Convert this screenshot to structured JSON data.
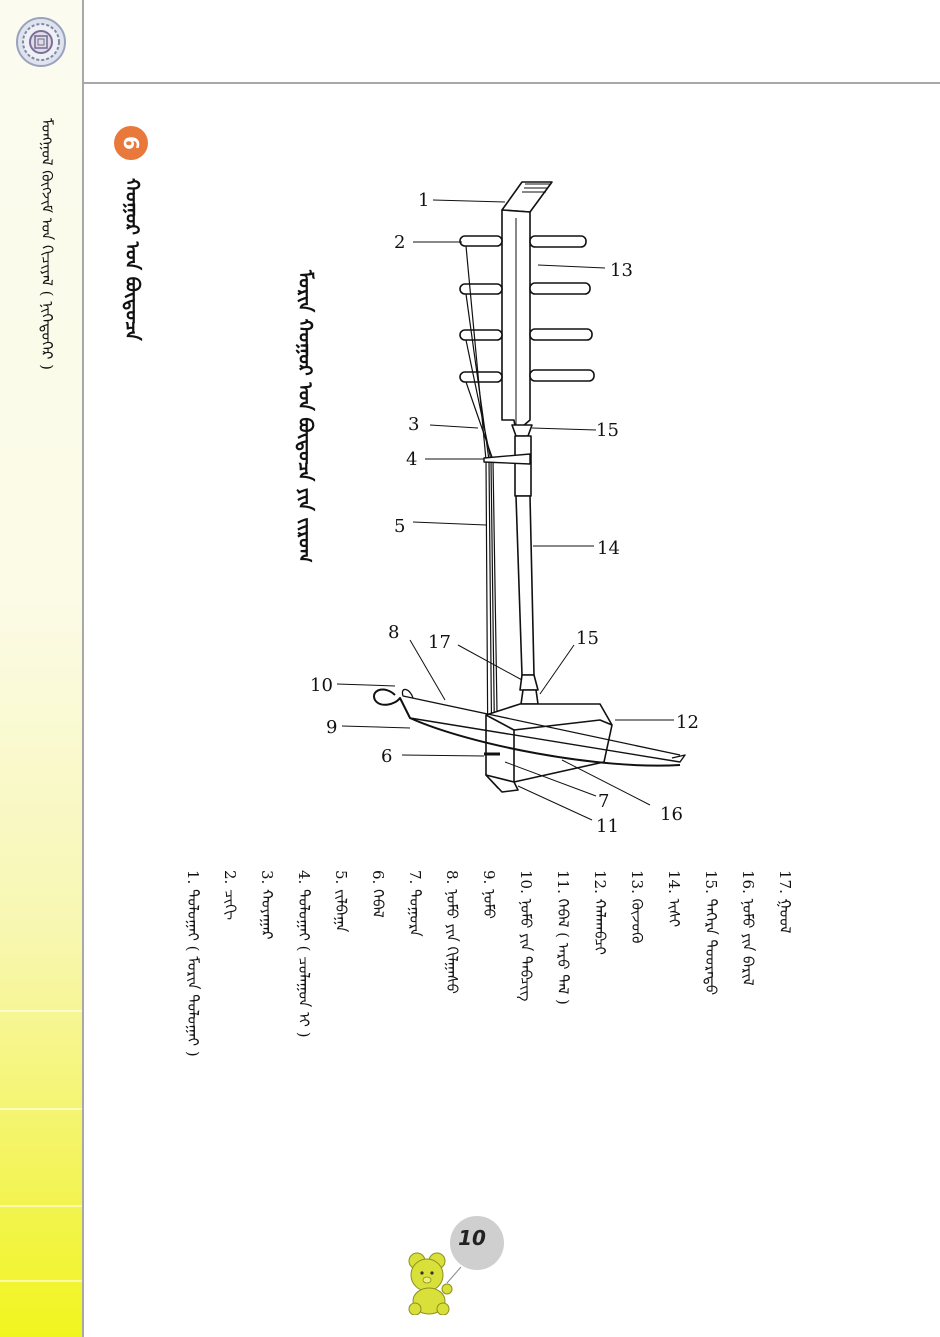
{
  "running_head": "ᠮᠣᠩᠭᠣᠯ ᠬᠥᠭᠵᠢᠮ ᠤᠨ ᠬᠢᠴᠢᠶᠡᠯ ( ᠨᠢᠭᠡᠳᠦᠭᠡᠷ )",
  "section": {
    "number": "6",
    "title": "ᠬᠤᠭᠤᠷ ᠤᠨ ᠪᠦᠲᠦᠴᠡ"
  },
  "figure_caption": "ᠮᠣᠷᠢᠨ ᠬᠤᠭᠤᠷ ᠤᠨ ᠪᠦᠲᠦᠴᠡ ᠶᠢᠨ ᠵᠢᠷᠤᠭ",
  "callouts": [
    "1",
    "2",
    "3",
    "4",
    "5",
    "6",
    "7",
    "8",
    "9",
    "10",
    "11",
    "12",
    "13",
    "14",
    "15",
    "15",
    "16",
    "17"
  ],
  "legend": [
    {
      "num": "1.",
      "text": "ᠲᠣᠯᠣᠭᠠᠢ ( ᠮᠣᠷᠢᠨ ᠲᠣᠯᠣᠭᠠᠢ )"
    },
    {
      "num": "2.",
      "text": "ᠴᠢᠬᠢ"
    },
    {
      "num": "3.",
      "text": "ᠬᠣᠶᠠᠭᠠᠷ"
    },
    {
      "num": "4.",
      "text": "ᠲᠣᠯᠣᠭᠠᠢ ( ᠴᠤᠯᠠᠭᠤᠨ ᠢ )"
    },
    {
      "num": "5.",
      "text": "ᠵᠢᠯᠪᠠᠭᠠ"
    },
    {
      "num": "6.",
      "text": "ᠬᠡᠪᠡᠯ"
    },
    {
      "num": "7.",
      "text": "ᠳᠤᠭᠤᠷᠠ"
    },
    {
      "num": "8.",
      "text": "ᠨᠤᠮᠤ ᠶᠢᠨ ᠬᠢᠯᠭᠠᠰᠤ"
    },
    {
      "num": "9.",
      "text": "ᠨᠤᠮᠤ"
    },
    {
      "num": "10.",
      "text": "ᠨᠤᠮᠤ ᠶᠢᠨ ᠲᠡᠪᠴᠢᠭ"
    },
    {
      "num": "11.",
      "text": "ᠬᠡᠪᠡᠯ ( ᠠᠷᠤ ᠲᠠᠯ )"
    },
    {
      "num": "12.",
      "text": "ᠬᠠᠯᠬᠠᠪᠴᠢ"
    },
    {
      "num": "13.",
      "text": "ᠬᠦᠵᠦᠭᠦ"
    },
    {
      "num": "14.",
      "text": "ᠢᠰᠢ"
    },
    {
      "num": "15.",
      "text": "ᠳᠡᠭᠡᠷᠡ ᠳᠣᠣᠷᠠᠳᠤ"
    },
    {
      "num": "16.",
      "text": "ᠨᠤᠮᠤ ᠶᠢᠨ ᠪᠠᠷᠢᠯ"
    },
    {
      "num": "17.",
      "text": "ᠭᠣᠣᠯ"
    }
  ],
  "page_number": "10",
  "icons": {
    "emblem": "ornament-emblem-icon",
    "badge": "numbered-badge-icon",
    "mascot": "teddy-bear-icon"
  },
  "colors": {
    "badge": "#e8793a",
    "band_top": "#fbfbf0",
    "band_bottom": "#f1f51e",
    "bear": "#d9e03a"
  }
}
